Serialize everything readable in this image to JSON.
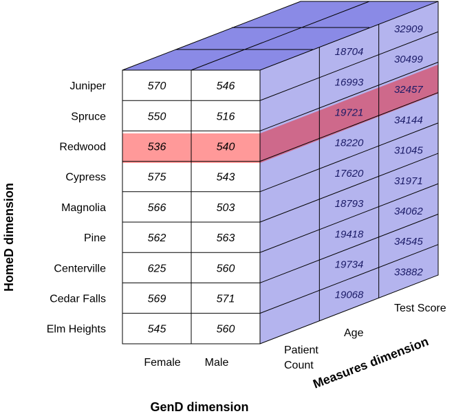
{
  "row_dimension": {
    "title": "HomeD dimension",
    "members": [
      "Juniper",
      "Spruce",
      "Redwood",
      "Cypress",
      "Magnolia",
      "Pine",
      "Centerville",
      "Cedar Falls",
      "Elm Heights"
    ]
  },
  "column_dimension": {
    "title": "GenD dimension",
    "members": [
      "Female",
      "Male"
    ]
  },
  "measures_dimension": {
    "title": "Measures dimension",
    "members": [
      "Patient Count",
      "Age",
      "Test Score"
    ]
  },
  "front_face": {
    "values": [
      [
        "570",
        "546"
      ],
      [
        "550",
        "516"
      ],
      [
        "536",
        "540"
      ],
      [
        "575",
        "543"
      ],
      [
        "566",
        "503"
      ],
      [
        "562",
        "563"
      ],
      [
        "625",
        "560"
      ],
      [
        "569",
        "571"
      ],
      [
        "545",
        "560"
      ]
    ]
  },
  "age_column": {
    "values": [
      "18704",
      "16993",
      "19721",
      "18220",
      "17620",
      "18793",
      "19418",
      "19734",
      "19068"
    ]
  },
  "test_score_column": {
    "values": [
      "32909",
      "30499",
      "32457",
      "34144",
      "31045",
      "31971",
      "34062",
      "34545",
      "33882"
    ]
  },
  "highlight": {
    "member": "Redwood",
    "color": "#ff9999",
    "slice_color": "#d0607f"
  },
  "colors": {
    "front_face": "#ffffff",
    "side_face": "#b4b4ee",
    "top_face": "#8a8ae6",
    "lines": "#000000"
  }
}
